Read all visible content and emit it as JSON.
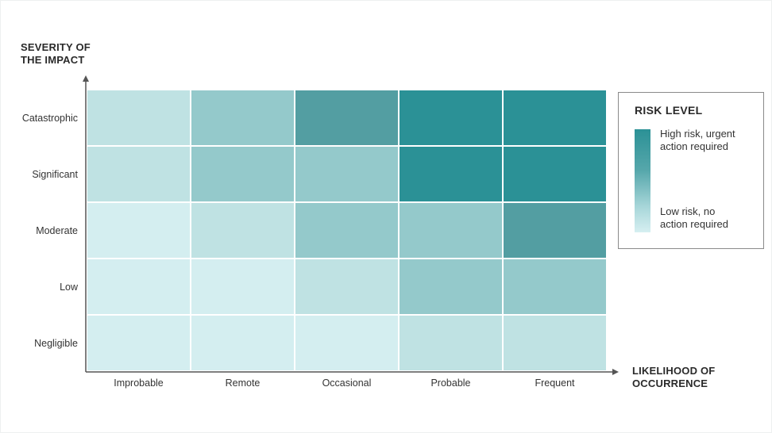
{
  "chart_data": {
    "type": "heatmap",
    "title": "",
    "ylabel": [
      "SEVERITY OF",
      "THE IMPACT"
    ],
    "xlabel": [
      "LIKELIHOOD OF",
      "OCCURRENCE"
    ],
    "x_categories": [
      "Improbable",
      "Remote",
      "Occasional",
      "Probable",
      "Frequent"
    ],
    "y_categories": [
      "Catastrophic",
      "Significant",
      "Moderate",
      "Low",
      "Negligible"
    ],
    "risk_levels": [
      [
        2,
        3,
        5,
        6,
        6
      ],
      [
        2,
        3,
        3,
        6,
        6
      ],
      [
        1,
        2,
        3,
        3,
        5
      ],
      [
        1,
        1,
        2,
        3,
        3
      ],
      [
        1,
        1,
        1,
        2,
        2
      ]
    ],
    "level_colors": {
      "1": "#d4eef0",
      "2": "#bfe2e3",
      "3": "#94c9cb",
      "5": "#539ea2",
      "6": "#2b9196"
    },
    "axis_color": "#555555",
    "legend": {
      "title": "RISK LEVEL",
      "high_label": [
        "High risk, urgent",
        "action required"
      ],
      "low_label": [
        "Low risk, no",
        "action required"
      ],
      "position": "right"
    }
  }
}
